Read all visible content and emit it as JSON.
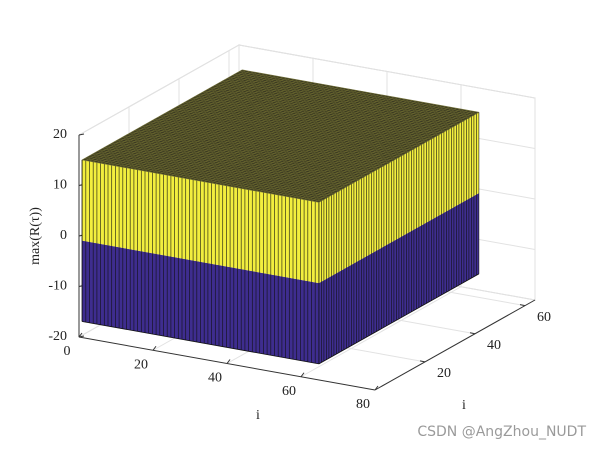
{
  "chart_data": {
    "type": "box3d",
    "xlabel": "i",
    "ylabel": "i",
    "zlabel": "max(R(τ))",
    "xlim": [
      0,
      80
    ],
    "xticks": [
      0,
      20,
      40,
      60,
      80
    ],
    "ylim": [
      0,
      64
    ],
    "yticks": [
      20,
      40,
      60
    ],
    "zlim": [
      -20,
      20
    ],
    "zticks": [
      -20,
      -10,
      0,
      10,
      20
    ],
    "xrange": [
      0.5,
      64.5
    ],
    "yrange": [
      0.5,
      64.5
    ],
    "layers": [
      {
        "from": -17,
        "to": -1,
        "color": "#3e2d8f"
      },
      {
        "from": -1,
        "to": 15,
        "color": "#f2ee3e"
      }
    ],
    "top_color": "#3c3a22",
    "mesh_color": "#111111",
    "grid": true,
    "watermark": "CSDN @AngZhou_NUDT"
  }
}
